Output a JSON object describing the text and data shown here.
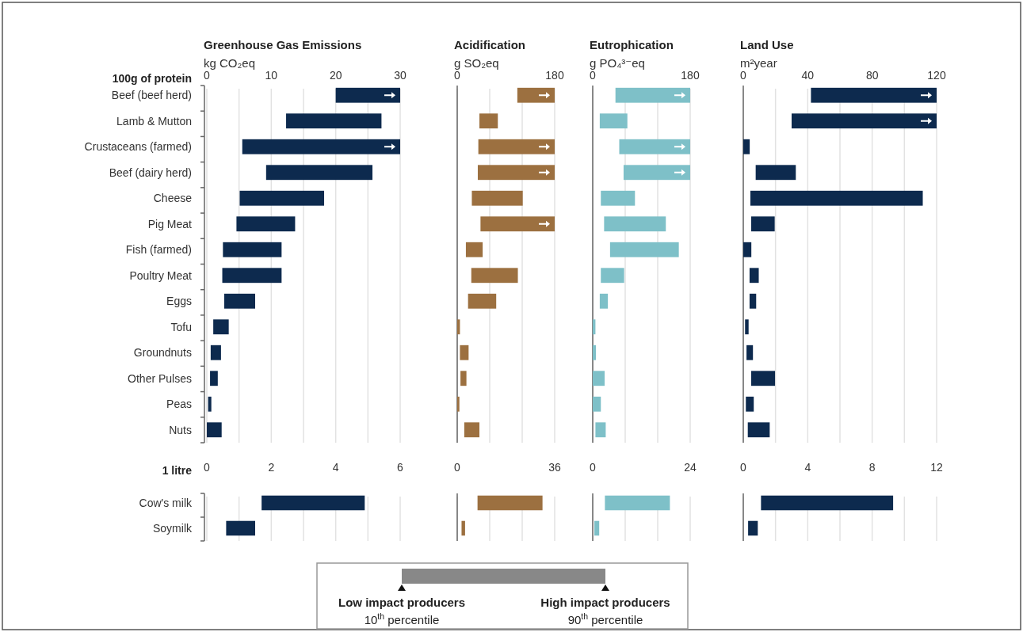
{
  "chart_data": [
    {
      "type": "bar",
      "orientation": "horizontal",
      "title": "Greenhouse Gas Emissions",
      "subtitle": "kg CO₂eq",
      "ylabel": "100g of protein",
      "categories": [
        "Beef (beef herd)",
        "Lamb & Mutton",
        "Crustaceans (farmed)",
        "Beef (dairy herd)",
        "Cheese",
        "Pig Meat",
        "Fish (farmed)",
        "Poultry Meat",
        "Eggs",
        "Tofu",
        "Groundnuts",
        "Other Pulses",
        "Peas",
        "Nuts"
      ],
      "base": [
        20,
        12.3,
        5.5,
        9.2,
        5.1,
        4.6,
        2.5,
        2.4,
        2.7,
        1.0,
        0.6,
        0.5,
        0.2,
        0
      ],
      "values": [
        10,
        14.8,
        24.5,
        16.5,
        13.1,
        9.1,
        9.1,
        9.2,
        4.8,
        2.4,
        1.6,
        1.2,
        0.5,
        2.3
      ],
      "color": "#0d2a4e",
      "xlim": [
        0,
        30
      ],
      "xticks": [
        0,
        {
          "value": 5,
          "label": null
        },
        10,
        {
          "value": 15,
          "label": null
        },
        20,
        {
          "value": 25,
          "label": null
        },
        30
      ],
      "grid": "x"
    },
    {
      "type": "bar",
      "orientation": "horizontal",
      "title": "Acidification",
      "subtitle": "g SO₂eq",
      "base": [
        111,
        41,
        39,
        38,
        27,
        43,
        16,
        26,
        20,
        0,
        5,
        6,
        0,
        13
      ],
      "values": [
        69,
        34,
        141,
        142,
        94,
        137,
        31,
        86,
        52,
        5,
        16,
        11,
        4,
        28
      ],
      "color": "#9c7040",
      "xlim": [
        0,
        180
      ],
      "xticks": [
        0,
        {
          "value": 60,
          "label": null
        },
        {
          "value": 120,
          "label": null
        },
        180
      ],
      "grid": "x",
      "tick_labels": "x"
    },
    {
      "type": "bar",
      "orientation": "horizontal",
      "title": "Eutrophication",
      "subtitle": "g PO₄³⁻eq",
      "base": [
        42,
        13,
        49,
        57,
        15,
        21,
        32,
        15,
        13,
        0,
        0,
        0,
        0,
        5
      ],
      "values": [
        138,
        51,
        131,
        123,
        63,
        114,
        127,
        43,
        15,
        5,
        6,
        22,
        15,
        19
      ],
      "color": "#7ec0c8",
      "xlim": [
        0,
        180
      ],
      "xticks": [
        0,
        {
          "value": 60,
          "label": null
        },
        {
          "value": 120,
          "label": null
        },
        180
      ],
      "grid": "x",
      "tick_labels": "x"
    },
    {
      "type": "bar",
      "orientation": "horizontal",
      "title": "Land Use",
      "subtitle": "m²year",
      "base": [
        42,
        30,
        0,
        7.7,
        4.4,
        4.9,
        0,
        3.9,
        3.9,
        1.1,
        2,
        4.9,
        1.6,
        2.8
      ],
      "values": [
        78,
        90,
        4,
        24.9,
        107,
        14.6,
        5,
        5.7,
        4.1,
        2.2,
        4,
        14.8,
        4.9,
        13.6
      ],
      "color": "#0d2a4e",
      "xlim": [
        0,
        120
      ],
      "xticks": [
        0,
        {
          "value": 20,
          "label": null
        },
        40,
        {
          "value": 60,
          "label": null
        },
        80,
        {
          "value": 100,
          "label": null
        },
        120
      ],
      "grid": "x",
      "tick_labels": "x"
    },
    {
      "type": "bar",
      "orientation": "horizontal",
      "ylabel": "1 litre",
      "categories": [
        "Cow's milk",
        "Soymilk"
      ],
      "base": [
        1.7,
        0.6
      ],
      "values": [
        3.2,
        0.9
      ],
      "color": "#0d2a4e",
      "xlim": [
        0,
        6
      ],
      "xticks": [
        0,
        {
          "value": 1,
          "label": null
        },
        2,
        {
          "value": 3,
          "label": null
        },
        4,
        {
          "value": 5,
          "label": null
        },
        6
      ],
      "grid": "x"
    },
    {
      "type": "bar",
      "orientation": "horizontal",
      "base": [
        7.5,
        1.6
      ],
      "values": [
        24,
        1.3
      ],
      "color": "#9c7040",
      "xlim": [
        0,
        36
      ],
      "xticks": [
        0,
        {
          "value": 12,
          "label": null
        },
        {
          "value": 24,
          "label": null
        },
        36
      ],
      "grid": "x",
      "tick_labels": "x"
    },
    {
      "type": "bar",
      "orientation": "horizontal",
      "base": [
        3,
        0.4
      ],
      "values": [
        16,
        1.2
      ],
      "color": "#7ec0c8",
      "xlim": [
        0,
        24
      ],
      "xticks": [
        0,
        {
          "value": 8,
          "label": null
        },
        {
          "value": 16,
          "label": null
        },
        24
      ],
      "grid": "x",
      "tick_labels": "x"
    },
    {
      "type": "bar",
      "orientation": "horizontal",
      "base": [
        1.1,
        0.3
      ],
      "values": [
        8.2,
        0.6
      ],
      "color": "#0d2a4e",
      "xlim": [
        0,
        12
      ],
      "xticks": [
        0,
        {
          "value": 2,
          "label": null
        },
        4,
        {
          "value": 6,
          "label": null
        },
        8,
        {
          "value": 10,
          "label": null
        },
        12
      ],
      "grid": "x",
      "tick_labels": "x"
    },
    {
      "type": "other",
      "annotations": [
        "Low impact producers",
        "10$^{th}$ percentile",
        "High impact producers",
        "90$^{th}$ percentile"
      ]
    }
  ]
}
